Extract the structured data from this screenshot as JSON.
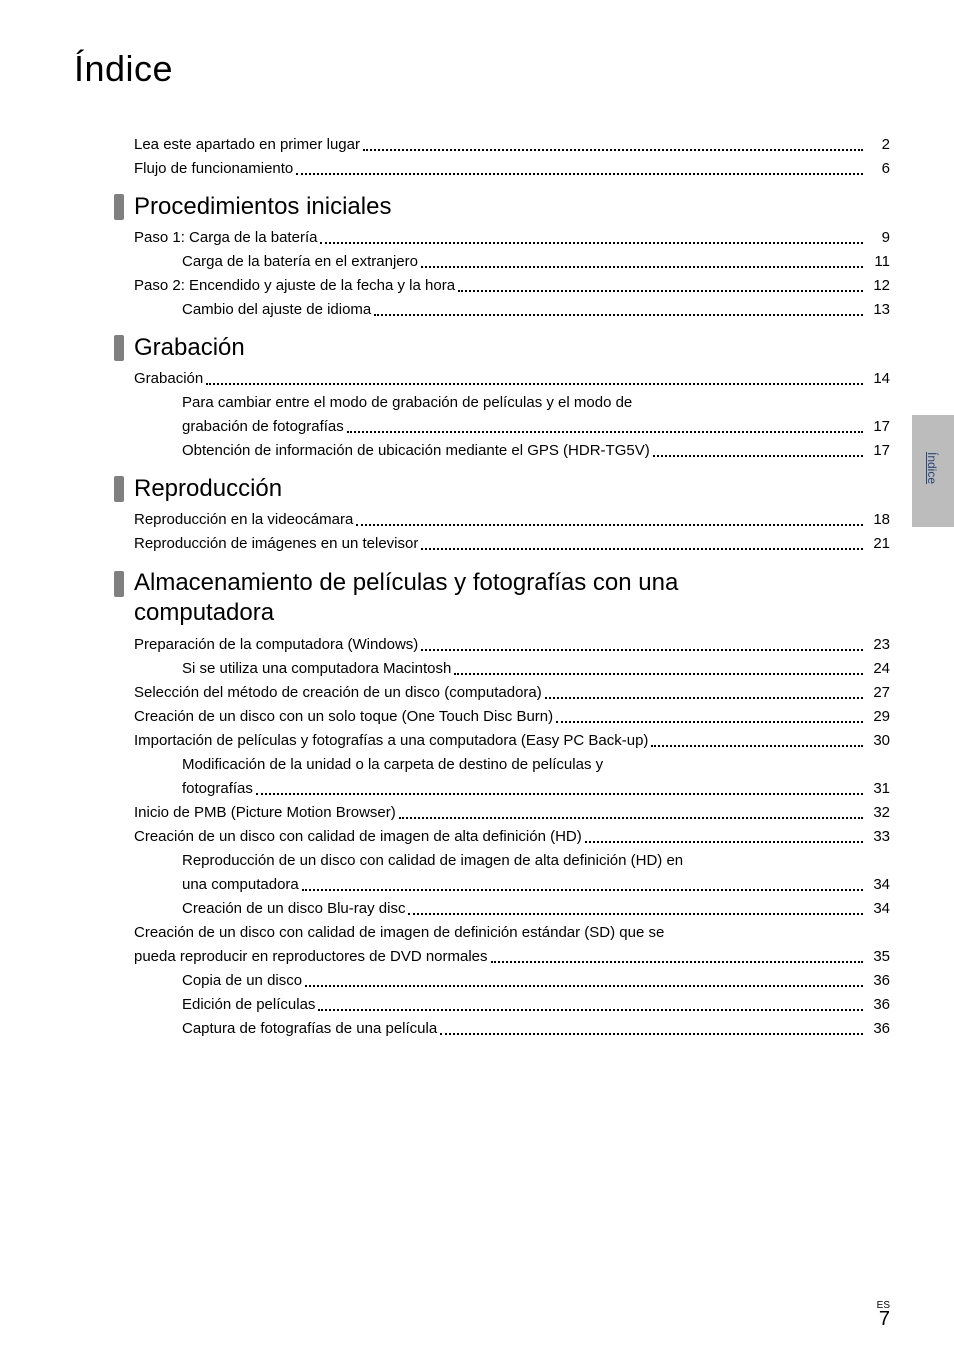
{
  "page_title": "Índice",
  "side_tab": {
    "label": "Índice"
  },
  "footer": {
    "lang": "ES",
    "page": "7"
  },
  "intro_rows": [
    {
      "type": "row",
      "indent": 0,
      "label": "Lea este apartado en primer lugar",
      "page": "2"
    },
    {
      "type": "row",
      "indent": 0,
      "label": "Flujo de funcionamiento",
      "page": "6"
    }
  ],
  "sections": [
    {
      "title": "Procedimientos iniciales",
      "rows": [
        {
          "type": "row",
          "indent": 0,
          "label": "Paso 1: Carga de la batería",
          "page": "9"
        },
        {
          "type": "row",
          "indent": 1,
          "label": "Carga de la batería en el extranjero",
          "page": "11"
        },
        {
          "type": "row",
          "indent": 0,
          "label": "Paso 2: Encendido y ajuste de la fecha y la hora",
          "page": "12"
        },
        {
          "type": "row",
          "indent": 1,
          "label": "Cambio del ajuste de idioma",
          "page": "13"
        }
      ]
    },
    {
      "title": "Grabación",
      "rows": [
        {
          "type": "row",
          "indent": 0,
          "label": "Grabación",
          "page": "14"
        },
        {
          "type": "multi",
          "indent": 1,
          "upper": "Para cambiar entre el modo de grabación de películas y el modo de",
          "lower": "grabación de fotografías",
          "page": "17"
        },
        {
          "type": "row",
          "indent": 1,
          "label": "Obtención de información de ubicación mediante el GPS (HDR-TG5V)",
          "page": "17"
        }
      ]
    },
    {
      "title": "Reproducción",
      "rows": [
        {
          "type": "row",
          "indent": 0,
          "label": "Reproducción en la videocámara",
          "page": "18"
        },
        {
          "type": "row",
          "indent": 0,
          "label": "Reproducción de imágenes en un televisor",
          "page": "21"
        }
      ]
    },
    {
      "title_lines": [
        "Almacenamiento de películas y fotografías con una",
        "computadora"
      ],
      "rows": [
        {
          "type": "row",
          "indent": 0,
          "label": "Preparación de la computadora (Windows)",
          "page": "23"
        },
        {
          "type": "row",
          "indent": 1,
          "label": "Si se utiliza una computadora Macintosh",
          "page": "24"
        },
        {
          "type": "row",
          "indent": 0,
          "label": "Selección del método de creación de un disco (computadora)",
          "page": "27"
        },
        {
          "type": "row",
          "indent": 0,
          "label": "Creación de un disco con un solo toque (One Touch Disc Burn)",
          "page": "29"
        },
        {
          "type": "row",
          "indent": 0,
          "label": "Importación de películas y fotografías a una computadora (Easy PC Back-up)",
          "page": "30"
        },
        {
          "type": "multi",
          "indent": 1,
          "upper": "Modificación de la unidad o la carpeta de destino de películas y",
          "lower": "fotografías",
          "page": "31"
        },
        {
          "type": "row",
          "indent": 0,
          "label": "Inicio de PMB (Picture Motion Browser)",
          "page": "32"
        },
        {
          "type": "row",
          "indent": 0,
          "label": "Creación de un disco con calidad de imagen de alta definición (HD)",
          "page": "33"
        },
        {
          "type": "multi",
          "indent": 1,
          "upper": "Reproducción de un disco con calidad de imagen de alta definición (HD) en",
          "lower": "una computadora",
          "page": "34"
        },
        {
          "type": "row",
          "indent": 1,
          "label": "Creación de un disco Blu-ray disc",
          "page": "34"
        },
        {
          "type": "multi",
          "indent": 0,
          "upper": "Creación de un disco con calidad de imagen de definición estándar (SD) que se",
          "lower": "pueda reproducir en reproductores de DVD normales",
          "page": "35"
        },
        {
          "type": "row",
          "indent": 1,
          "label": "Copia de un disco",
          "page": "36"
        },
        {
          "type": "row",
          "indent": 1,
          "label": "Edición de películas",
          "page": "36"
        },
        {
          "type": "row",
          "indent": 1,
          "label": "Captura de fotografías de una película",
          "page": "36"
        }
      ]
    }
  ]
}
